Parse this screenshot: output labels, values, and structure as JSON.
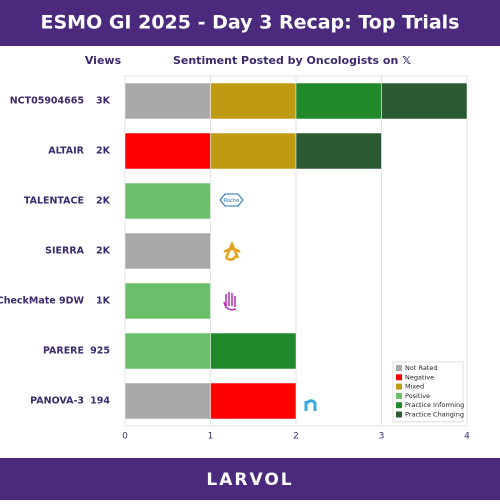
{
  "chart_data": {
    "type": "stacked-bar-horizontal",
    "title": "ESMO GI 2025 - Day 3 Recap: Top Trials",
    "views_header": "Views",
    "subtitle": "Sentiment Posted by Oncologists on 𝕏",
    "categories": [
      "NCT05904665",
      "ALTAIR",
      "TALENTACE",
      "SIERRA",
      "CheckMate 9DW",
      "PARERE",
      "PANOVA-3"
    ],
    "views": [
      "3K",
      "2K",
      "2K",
      "2K",
      "1K",
      "925",
      "194"
    ],
    "series": [
      {
        "name": "Not Rated",
        "color": "#a9a9ab",
        "values": [
          1,
          0,
          0,
          1,
          0,
          0,
          1
        ]
      },
      {
        "name": "Negative",
        "color": "#ff0000",
        "values": [
          0,
          1,
          0,
          0,
          0,
          0,
          1
        ]
      },
      {
        "name": "Mixed",
        "color": "#bf9b14",
        "values": [
          1,
          1,
          0,
          0,
          0,
          0,
          0
        ]
      },
      {
        "name": "Positive",
        "color": "#6abf6a",
        "values": [
          0,
          0,
          1,
          0,
          1,
          1,
          0
        ]
      },
      {
        "name": "Practice Informing",
        "color": "#22892b",
        "values": [
          1,
          0,
          0,
          0,
          0,
          1,
          0
        ]
      },
      {
        "name": "Practice Changing",
        "color": "#2c5a32",
        "values": [
          1,
          1,
          0,
          0,
          0,
          0,
          0
        ]
      }
    ],
    "xlim": [
      0,
      4
    ],
    "xticks": [
      0,
      1,
      2,
      3,
      4
    ],
    "grid": true,
    "legend": "lower right",
    "roche_logo": "Roche",
    "footer": "LARVOL"
  }
}
